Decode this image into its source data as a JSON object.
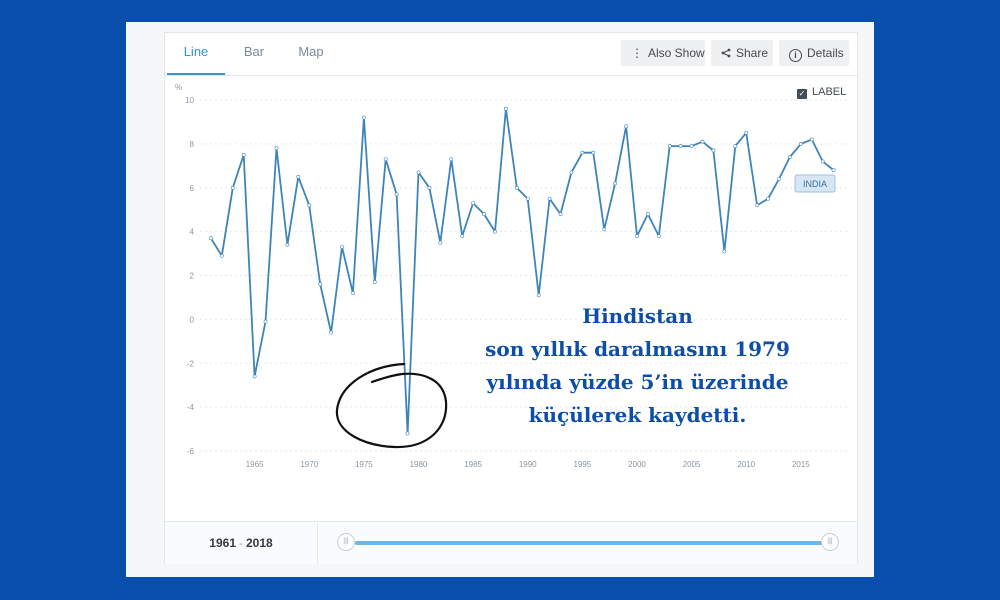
{
  "tabs": [
    {
      "label": "Line",
      "active": true
    },
    {
      "label": "Bar",
      "active": false
    },
    {
      "label": "Map",
      "active": false
    }
  ],
  "toolbar": {
    "also_show": "Also Show",
    "share": "Share",
    "details": "Details"
  },
  "label_toggle": {
    "label": "LABEL",
    "checked": true
  },
  "range": {
    "start": "1961",
    "sep": "-",
    "end": "2018"
  },
  "annotation": {
    "lines": [
      "Hindistan",
      "son yıllık daralmasını 1979",
      "yılında yüzde 5’in üzerinde",
      "küçülerek kaydetti."
    ]
  },
  "colors": {
    "background": "#0a4fae",
    "line": "#3f84b8",
    "accent": "#3592d1",
    "annotation": "#0d4ea6"
  },
  "chart_data": {
    "type": "line",
    "ylabel": "%",
    "ylim": [
      -6,
      10
    ],
    "yticks": [
      10,
      8,
      6,
      4,
      2,
      0,
      -2,
      -4,
      -6
    ],
    "xticks": [
      1965,
      1970,
      1975,
      1980,
      1985,
      1990,
      1995,
      2000,
      2005,
      2010,
      2015
    ],
    "grid": true,
    "series": [
      {
        "name": "INDIA",
        "x": [
          1961,
          1962,
          1963,
          1964,
          1965,
          1966,
          1967,
          1968,
          1969,
          1970,
          1971,
          1972,
          1973,
          1974,
          1975,
          1976,
          1977,
          1978,
          1979,
          1980,
          1981,
          1982,
          1983,
          1984,
          1985,
          1986,
          1987,
          1988,
          1989,
          1990,
          1991,
          1992,
          1993,
          1994,
          1995,
          1996,
          1997,
          1998,
          1999,
          2000,
          2001,
          2002,
          2003,
          2004,
          2005,
          2006,
          2007,
          2008,
          2009,
          2010,
          2011,
          2012,
          2013,
          2014,
          2015,
          2016,
          2017,
          2018
        ],
        "values": [
          3.7,
          2.9,
          6.0,
          7.5,
          -2.6,
          -0.1,
          7.8,
          3.4,
          6.5,
          5.2,
          1.6,
          -0.6,
          3.3,
          1.2,
          9.2,
          1.7,
          7.3,
          5.7,
          -5.2,
          6.7,
          6.0,
          3.5,
          7.3,
          3.8,
          5.3,
          4.8,
          4.0,
          9.6,
          6.0,
          5.5,
          1.1,
          5.5,
          4.8,
          6.7,
          7.6,
          7.6,
          4.1,
          6.2,
          8.8,
          3.8,
          4.8,
          3.8,
          7.9,
          7.9,
          7.9,
          8.1,
          7.7,
          3.1,
          7.9,
          8.5,
          5.2,
          5.5,
          6.4,
          7.4,
          8.0,
          8.2,
          7.2,
          6.8
        ]
      }
    ]
  }
}
